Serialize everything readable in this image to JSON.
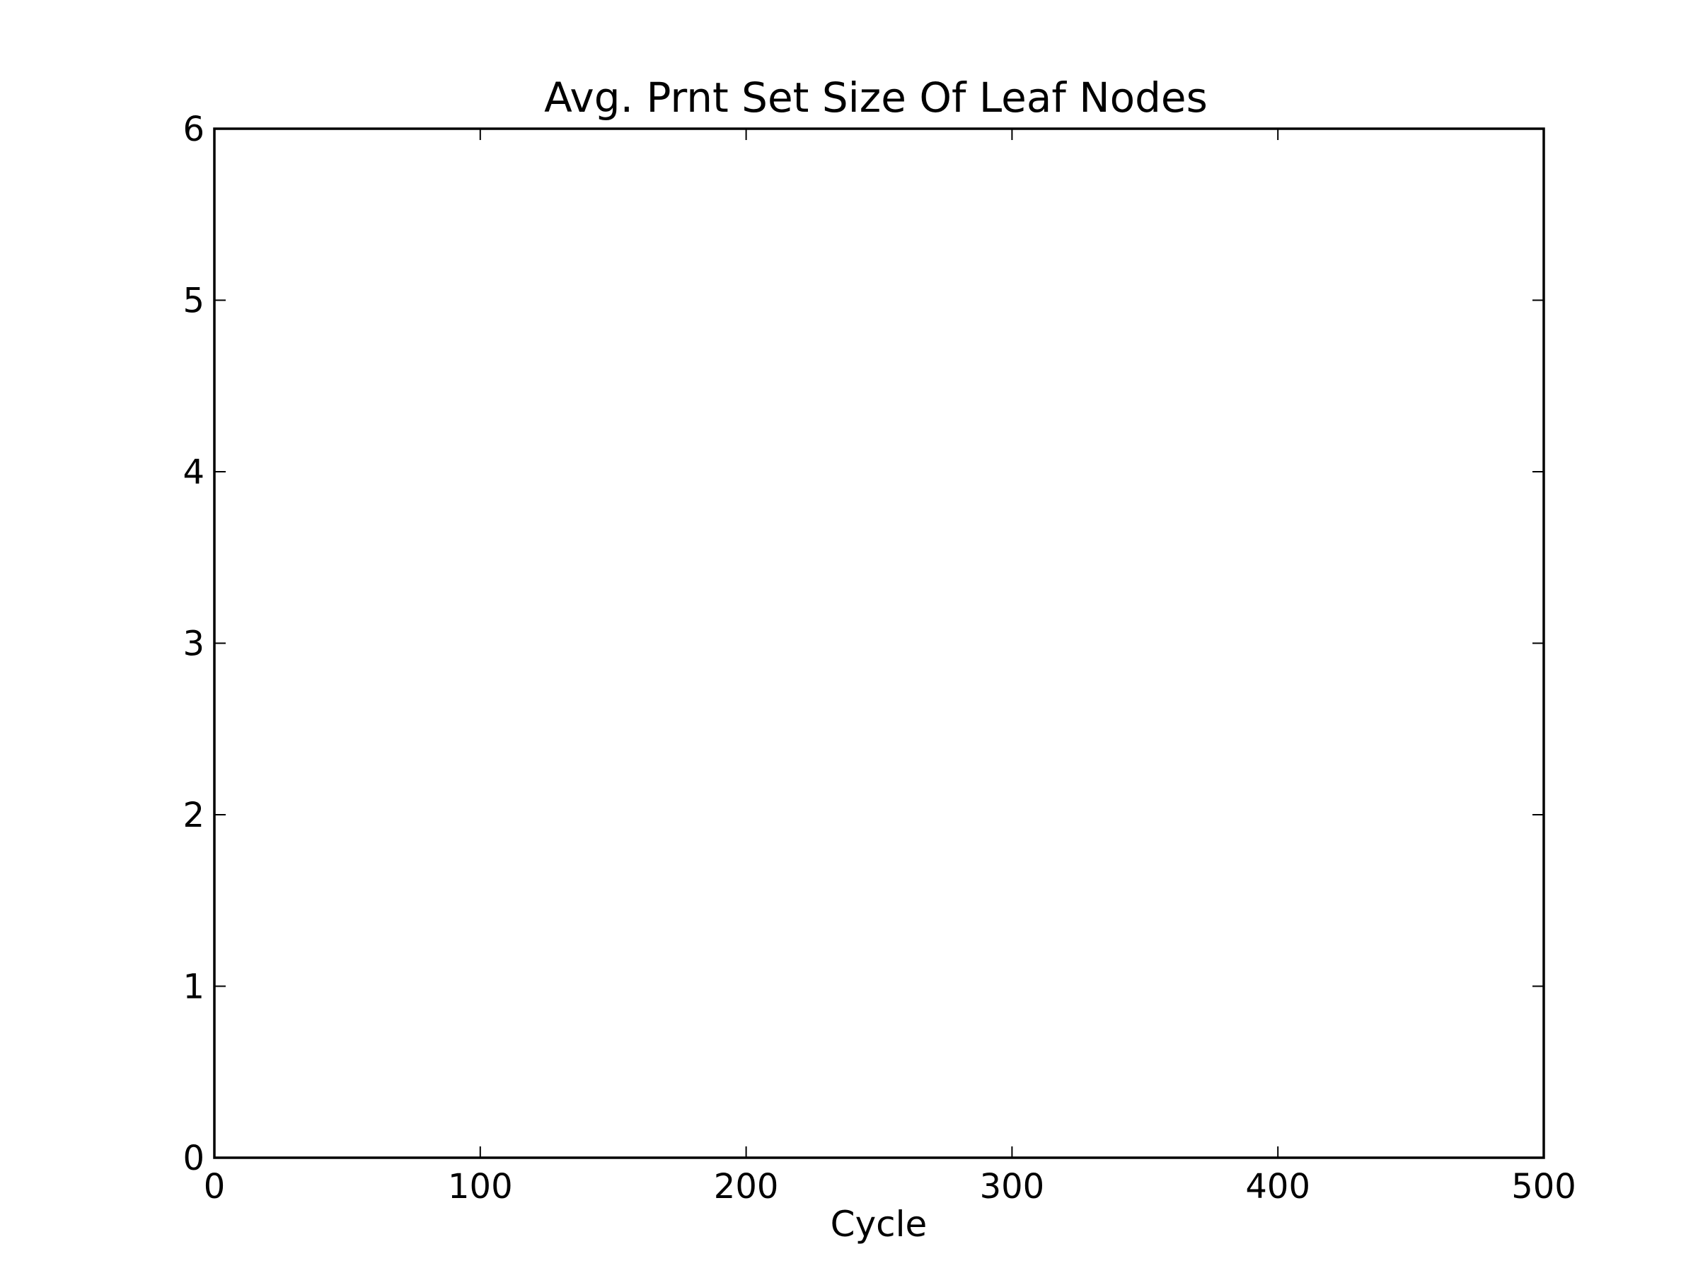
{
  "chart_data": {
    "type": "line",
    "title": "Avg. Prnt Set Size Of Leaf Nodes",
    "xlabel": "Cycle",
    "ylabel": "",
    "xlim": [
      0,
      500
    ],
    "ylim": [
      0,
      6
    ],
    "x_ticks": [
      0,
      100,
      200,
      300,
      400,
      500
    ],
    "y_ticks": [
      0,
      1,
      2,
      3,
      4,
      5,
      6
    ],
    "x_tick_labels": [
      "0",
      "100",
      "200",
      "300",
      "400",
      "500"
    ],
    "y_tick_labels": [
      "0",
      "1",
      "2",
      "3",
      "4",
      "5",
      "6"
    ],
    "series": [],
    "grid": false,
    "legend": "none",
    "colors": {
      "frame": "#000000",
      "background": "#ffffff"
    }
  }
}
